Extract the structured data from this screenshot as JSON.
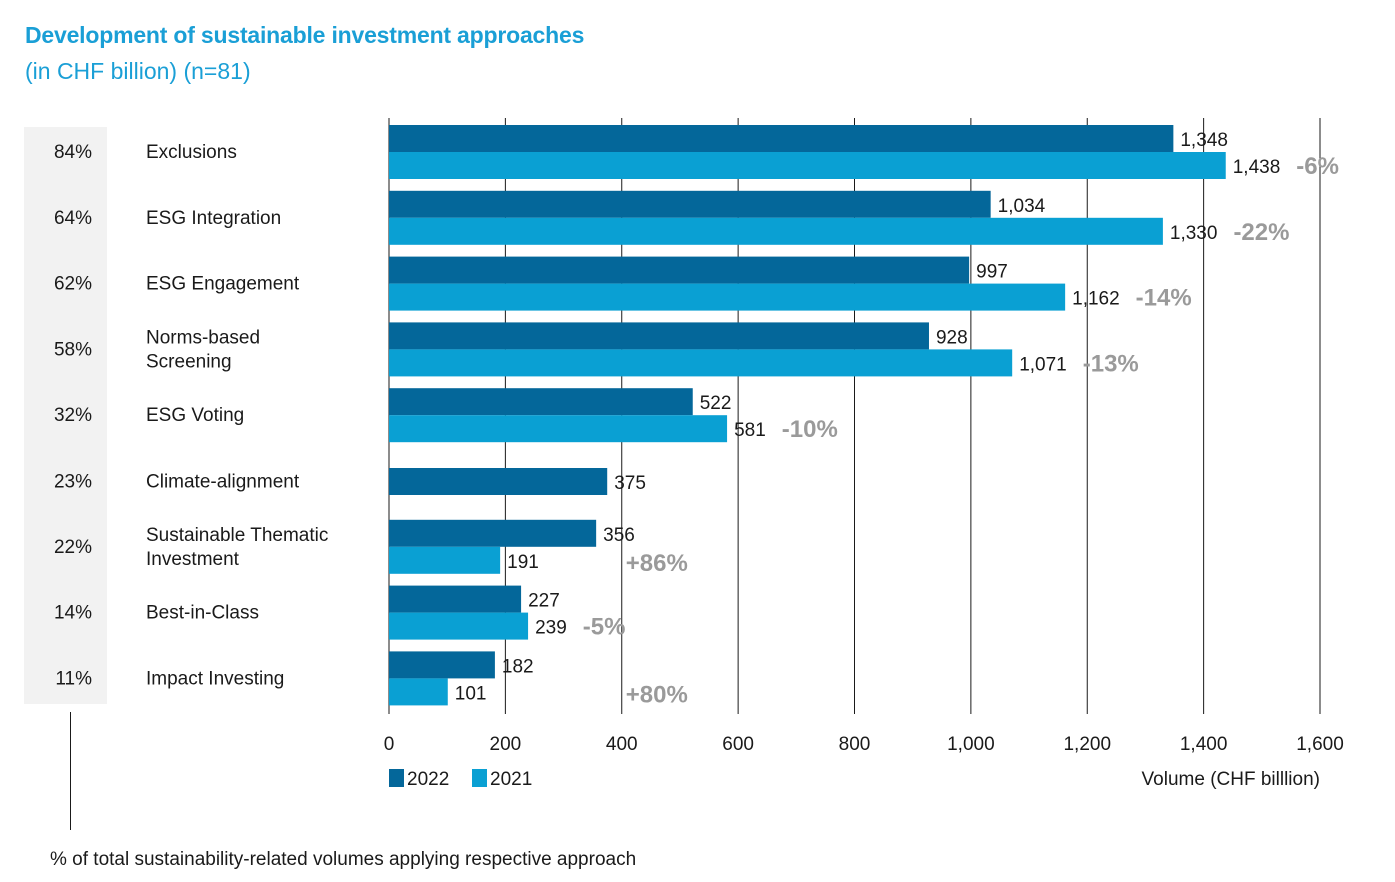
{
  "header": {
    "title": "Development of sustainable investment approaches",
    "subtitle": "(in CHF billion) (n=81)"
  },
  "footnote": "% of total sustainability-related volumes applying respective approach",
  "colors": {
    "series_2022": "#04679a",
    "series_2021": "#0aa0d3",
    "title": "#1a9fd6",
    "change": "#9a9a9a",
    "panel": "#f2f2f2"
  },
  "chart_data": {
    "type": "bar",
    "orientation": "horizontal",
    "title": "Development of sustainable investment approaches",
    "subtitle": "(in CHF billion) (n=81)",
    "xlabel": "Volume (CHF billlion)",
    "xlim": [
      0,
      1600
    ],
    "xticks": [
      0,
      200,
      400,
      600,
      800,
      1000,
      1200,
      1400,
      1600
    ],
    "xtick_labels": [
      "0",
      "200",
      "400",
      "600",
      "800",
      "1,000",
      "1,200",
      "1,400",
      "1,600"
    ],
    "grid": "vertical",
    "categories": [
      "Exclusions",
      "ESG Integration",
      "ESG Engagement",
      "Norms-based Screening",
      "ESG Voting",
      "Climate-alignment",
      "Sustainable Thematic Investment",
      "Best-in-Class",
      "Impact Investing"
    ],
    "category_lines": [
      [
        "Exclusions"
      ],
      [
        "ESG Integration"
      ],
      [
        "ESG Engagement"
      ],
      [
        "Norms-based",
        "Screening"
      ],
      [
        "ESG Voting"
      ],
      [
        "Climate-alignment"
      ],
      [
        "Sustainable Thematic",
        "Investment"
      ],
      [
        "Best-in-Class"
      ],
      [
        "Impact Investing"
      ]
    ],
    "share_of_total": [
      "84%",
      "64%",
      "62%",
      "58%",
      "32%",
      "23%",
      "22%",
      "14%",
      "11%"
    ],
    "series": [
      {
        "name": "2022",
        "values": [
          1348,
          1034,
          997,
          928,
          522,
          375,
          356,
          227,
          182
        ],
        "labels": [
          "1,348",
          "1,034",
          "997",
          "928",
          "522",
          "375",
          "356",
          "227",
          "182"
        ]
      },
      {
        "name": "2021",
        "values": [
          1438,
          1330,
          1162,
          1071,
          581,
          null,
          191,
          239,
          101
        ],
        "labels": [
          "1,438",
          "1,330",
          "1,162",
          "1,071",
          "581",
          null,
          "191",
          "239",
          "101"
        ]
      }
    ],
    "changes": [
      "-6%",
      "-22%",
      "-14%",
      "-13%",
      "-10%",
      null,
      "+86%",
      "-5%",
      "+80%"
    ],
    "legend": [
      {
        "name": "2022"
      },
      {
        "name": "2021"
      }
    ],
    "legend_position": "bottom-left"
  }
}
